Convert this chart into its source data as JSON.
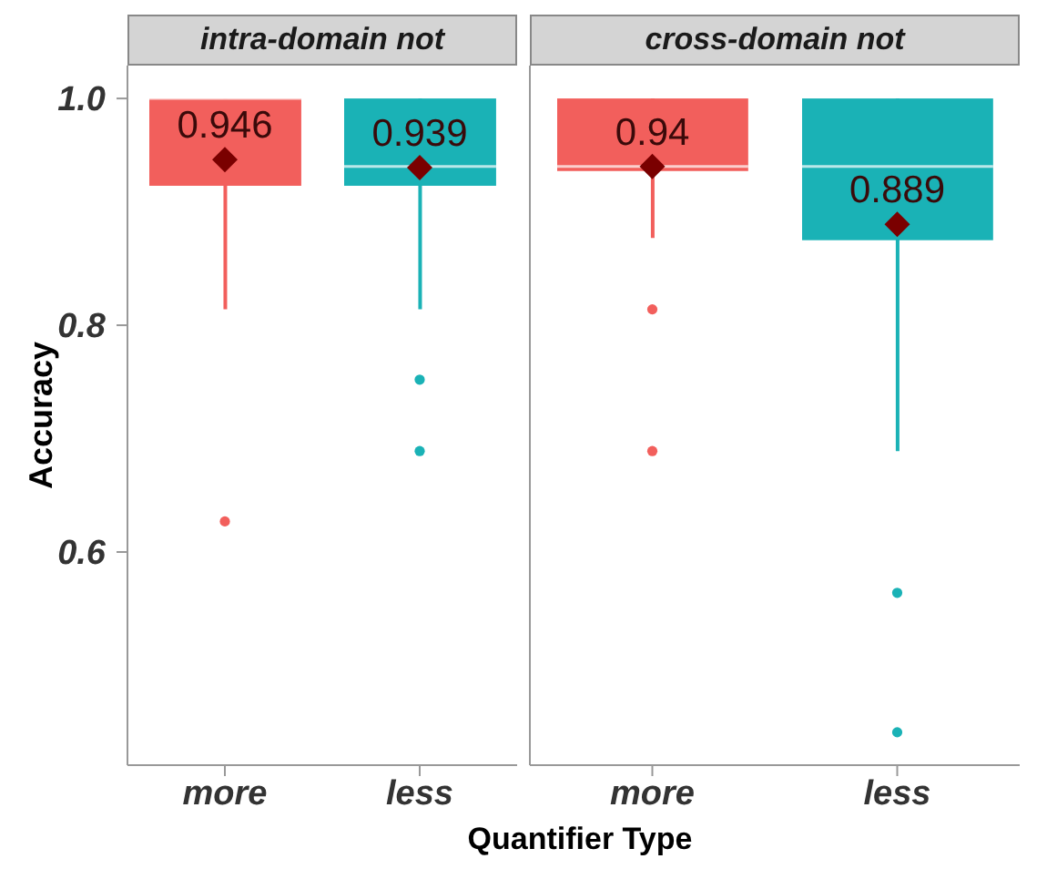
{
  "chart_data": [
    {
      "type": "box",
      "title": "intra-domain not",
      "ylabel": "Accuracy",
      "xlabel": "Quantifier Type",
      "categories": [
        "more",
        "less"
      ],
      "colors": [
        "#f25f5c",
        "#1ab2b6"
      ],
      "boxes": [
        {
          "low": 0.814,
          "q1": 0.923,
          "median": 1.0,
          "q3": 1.0,
          "high": 1.0,
          "mean": 0.946,
          "outliers": [
            0.627
          ]
        },
        {
          "low": 0.814,
          "q1": 0.923,
          "median": 0.94,
          "q3": 1.0,
          "high": 1.0,
          "mean": 0.939,
          "outliers": [
            0.752,
            0.689
          ]
        }
      ],
      "annotations": [
        {
          "text": "0.946",
          "x": "more",
          "y": 0.946
        },
        {
          "text": "0.939",
          "x": "less",
          "y": 0.939
        }
      ],
      "ylim": [
        0.412,
        1.029
      ],
      "yticks": [
        0.6,
        0.8,
        {
          "value": 1,
          "label": "1.0"
        }
      ],
      "grid": false
    },
    {
      "type": "box",
      "title": "cross-domain not",
      "categories": [
        "more",
        "less"
      ],
      "colors": [
        "#f25f5c",
        "#1ab2b6"
      ],
      "boxes": [
        {
          "low": 0.877,
          "q1": 0.936,
          "median": 0.94,
          "q3": 1.0,
          "high": 1.0,
          "mean": 0.94,
          "outliers": [
            0.814,
            0.689
          ]
        },
        {
          "low": 0.689,
          "q1": 0.875,
          "median": 0.94,
          "q3": 1.0,
          "high": 1.0,
          "mean": 0.889,
          "outliers": [
            0.564,
            0.441
          ]
        }
      ],
      "annotations": [
        {
          "text": "0.94",
          "x": "more",
          "y": 0.94
        },
        {
          "text": "0.889",
          "x": "less",
          "y": 0.889
        }
      ],
      "ylim": [
        0.412,
        1.029
      ],
      "grid": false,
      "tick_labels": "x"
    }
  ]
}
